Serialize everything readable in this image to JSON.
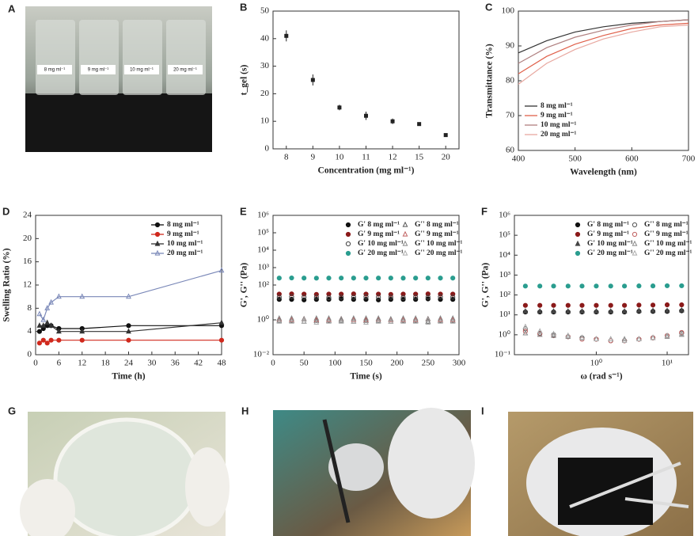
{
  "photos": [
    {
      "label": "A",
      "vial_labels": [
        "8 mg ml⁻¹",
        "9 mg ml⁻¹",
        "10 mg ml⁻¹",
        "20 mg ml⁻¹"
      ]
    },
    {
      "label": "G"
    },
    {
      "label": "H"
    },
    {
      "label": "I"
    }
  ],
  "chart_data": [
    {
      "type": "scatter",
      "panel": "B",
      "xlabel": "Concentration (mg ml⁻¹)",
      "ylabel": "t_gel (s)",
      "categories": [
        "8",
        "9",
        "10",
        "11",
        "12",
        "15",
        "20"
      ],
      "values": [
        41,
        25,
        15,
        12,
        10,
        9,
        5
      ],
      "errors": [
        2,
        2,
        1,
        1.5,
        1,
        0.5,
        0.5
      ],
      "color": "#222",
      "ylim": [
        0,
        50
      ],
      "yticks": [
        0,
        10,
        20,
        30,
        40,
        50
      ]
    },
    {
      "type": "line",
      "panel": "C",
      "xlabel": "Wavelength (nm)",
      "ylabel": "Transmittance (%)",
      "x": [
        400,
        450,
        500,
        550,
        600,
        650,
        700
      ],
      "xlim": [
        400,
        700
      ],
      "xticks": [
        400,
        500,
        600,
        700
      ],
      "ylim": [
        60,
        100
      ],
      "yticks": [
        60,
        70,
        80,
        90,
        100
      ],
      "legend": "lower left",
      "series": [
        {
          "name": "8 mg ml⁻¹",
          "color": "#333",
          "values": [
            88,
            91.5,
            94,
            95.5,
            96.5,
            97,
            97.5
          ]
        },
        {
          "name": "9 mg ml⁻¹",
          "color": "#e0604a",
          "values": [
            82,
            87,
            90.5,
            93,
            95,
            96,
            96.5
          ]
        },
        {
          "name": "10 mg ml⁻¹",
          "color": "#b08080",
          "values": [
            85,
            89.5,
            92.5,
            94.5,
            96,
            97,
            97.5
          ]
        },
        {
          "name": "20 mg ml⁻¹",
          "color": "#e8a8a0",
          "values": [
            79,
            85,
            89,
            92,
            94,
            95.5,
            96
          ]
        }
      ]
    },
    {
      "type": "line",
      "panel": "D",
      "xlabel": "Time (h)",
      "ylabel": "Swelling Ratio (%)",
      "x": [
        1,
        2,
        3,
        4,
        6,
        12,
        24,
        48
      ],
      "xlim": [
        0,
        48
      ],
      "xticks": [
        0,
        6,
        12,
        18,
        24,
        30,
        36,
        42,
        48
      ],
      "ylim": [
        0,
        24
      ],
      "yticks": [
        0,
        4,
        8,
        12,
        16,
        20,
        24
      ],
      "legend": "upper right",
      "series": [
        {
          "name": "8 mg ml⁻¹",
          "color": "#111",
          "marker": "circle",
          "filled": true,
          "values": [
            4,
            4.5,
            5,
            5,
            4.5,
            4.5,
            5,
            5
          ]
        },
        {
          "name": "9 mg ml⁻¹",
          "color": "#d0281c",
          "marker": "circle",
          "filled": true,
          "values": [
            2,
            2.5,
            2,
            2.5,
            2.5,
            2.5,
            2.5,
            2.5
          ]
        },
        {
          "name": "10 mg ml⁻¹",
          "color": "#333",
          "marker": "triangle",
          "filled": true,
          "values": [
            5,
            5,
            5.5,
            5,
            4,
            4,
            4,
            5.5
          ]
        },
        {
          "name": "20 mg ml⁻¹",
          "color": "#7a88b8",
          "marker": "triangle",
          "filled": false,
          "values": [
            7,
            6,
            8,
            9,
            10,
            10,
            10,
            14.5
          ]
        }
      ]
    },
    {
      "type": "scatter",
      "panel": "E",
      "xlabel": "Time (s)",
      "ylabel": "G', G'' (Pa)",
      "ylog": true,
      "x": [
        10,
        30,
        50,
        70,
        90,
        110,
        130,
        150,
        170,
        190,
        210,
        230,
        250,
        270,
        290
      ],
      "xlim": [
        0,
        300
      ],
      "xticks": [
        0,
        50,
        100,
        150,
        200,
        250,
        300
      ],
      "ylim": [
        0.01,
        1000000
      ],
      "legend": "upper right",
      "legend_columns": 2,
      "yticks": [
        {
          "value": 0.01,
          "label": "10⁻²"
        },
        {
          "value": 1,
          "label": "10⁰"
        },
        {
          "value": 100,
          "label": "10²"
        },
        {
          "value": 1000,
          "label": "10³"
        },
        {
          "value": 10000,
          "label": "10⁴"
        },
        {
          "value": 100000,
          "label": "10⁵"
        },
        {
          "value": 1000000,
          "label": "10⁶"
        }
      ],
      "series": [
        {
          "name": "G' 8 mg ml⁻¹",
          "color": "#111",
          "marker": "circle",
          "filled": true,
          "values": [
            15,
            15,
            14,
            15,
            15,
            16,
            15,
            15,
            14,
            15,
            15,
            15,
            16,
            15,
            15
          ]
        },
        {
          "name": "G'' 8 mg ml⁻¹",
          "color": "#555",
          "marker": "triangle",
          "filled": false,
          "values": [
            0.9,
            0.9,
            0.8,
            0.9,
            0.9,
            0.9,
            0.8,
            0.9,
            0.9,
            0.8,
            0.9,
            0.9,
            0.8,
            0.9,
            0.9
          ]
        },
        {
          "name": "G' 9 mg ml⁻¹",
          "color": "#8b1a1a",
          "marker": "circle",
          "filled": true,
          "values": [
            30,
            31,
            30,
            29,
            30,
            30,
            31,
            30,
            30,
            29,
            30,
            30,
            31,
            30,
            30
          ]
        },
        {
          "name": "G'' 9 mg ml⁻¹",
          "color": "#c06060",
          "marker": "triangle",
          "filled": false,
          "values": [
            1.1,
            1,
            1.1,
            1,
            1,
            1.1,
            1,
            1,
            1.1,
            1,
            1,
            1,
            1.1,
            1,
            1
          ]
        },
        {
          "name": "G' 10 mg ml⁻¹",
          "color": "#444",
          "marker": "circle",
          "filled": false,
          "values": [
            20,
            21,
            20,
            20,
            19,
            20,
            20,
            21,
            20,
            20,
            19,
            20,
            20,
            21,
            20
          ]
        },
        {
          "name": "G'' 10 mg ml⁻¹",
          "color": "#888",
          "marker": "triangle",
          "filled": false,
          "values": [
            1.2,
            1.2,
            1.1,
            1.2,
            1.2,
            1.1,
            1.2,
            1.2,
            1.2,
            1.1,
            1.2,
            1.2,
            1.1,
            1.2,
            1.2
          ]
        },
        {
          "name": "G' 20 mg ml⁻¹",
          "color": "#2a9d8f",
          "marker": "circle",
          "filled": true,
          "values": [
            250,
            255,
            250,
            248,
            250,
            252,
            250,
            250,
            251,
            250,
            249,
            250,
            252,
            250,
            250
          ]
        },
        {
          "name": "G'' 20 mg ml⁻¹",
          "color": "#aaa",
          "marker": "triangle",
          "filled": false,
          "values": [
            0.8,
            0.8,
            0.8,
            0.7,
            0.8,
            0.8,
            0.8,
            0.7,
            0.8,
            0.8,
            0.8,
            0.8,
            0.7,
            0.8,
            0.8
          ]
        }
      ]
    },
    {
      "type": "scatter",
      "panel": "F",
      "xlabel": "ω (rad s⁻¹)",
      "ylabel": "G', G'' (Pa)",
      "ylog": true,
      "xlog": true,
      "x": [
        0.1,
        0.16,
        0.25,
        0.4,
        0.63,
        1,
        1.6,
        2.5,
        4,
        6.3,
        10,
        16
      ],
      "xlim": [
        0.07,
        20
      ],
      "xticks": [
        {
          "value": 1,
          "label": "10⁰"
        },
        {
          "value": 10,
          "label": "10¹"
        }
      ],
      "ylim": [
        0.1,
        1000000
      ],
      "legend": "upper right",
      "legend_columns": 2,
      "yticks": [
        {
          "value": 0.1,
          "label": "10⁻¹"
        },
        {
          "value": 1,
          "label": "10⁰"
        },
        {
          "value": 10,
          "label": "10¹"
        },
        {
          "value": 100,
          "label": "10²"
        },
        {
          "value": 1000,
          "label": "10³"
        },
        {
          "value": 10000,
          "label": "10⁴"
        },
        {
          "value": 100000,
          "label": "10⁵"
        },
        {
          "value": 1000000,
          "label": "10⁶"
        }
      ],
      "series": [
        {
          "name": "G' 8 mg ml⁻¹",
          "color": "#111",
          "marker": "circle",
          "filled": true,
          "values": [
            14,
            14,
            14,
            14,
            14,
            14,
            14,
            14,
            15,
            15,
            15,
            16
          ]
        },
        {
          "name": "G'' 8 mg ml⁻¹",
          "color": "#555",
          "marker": "circle",
          "filled": false,
          "values": [
            2,
            1.2,
            1,
            0.8,
            0.7,
            0.6,
            0.5,
            0.5,
            0.6,
            0.7,
            0.9,
            1.2
          ]
        },
        {
          "name": "G' 9 mg ml⁻¹",
          "color": "#8b1a1a",
          "marker": "circle",
          "filled": true,
          "values": [
            30,
            30,
            30,
            30,
            30,
            30,
            30,
            30,
            31,
            31,
            32,
            32
          ]
        },
        {
          "name": "G'' 9 mg ml⁻¹",
          "color": "#c06060",
          "marker": "circle",
          "filled": false,
          "values": [
            1.5,
            1.1,
            0.9,
            0.8,
            0.6,
            0.6,
            0.5,
            0.5,
            0.6,
            0.7,
            0.9,
            1.3
          ]
        },
        {
          "name": "G' 10 mg ml⁻¹",
          "color": "#444",
          "marker": "triangle",
          "filled": true,
          "values": [
            15,
            15,
            15,
            15,
            15,
            15,
            15,
            15,
            16,
            16,
            16,
            17
          ]
        },
        {
          "name": "G'' 10 mg ml⁻¹",
          "color": "#888",
          "marker": "triangle",
          "filled": false,
          "values": [
            1.2,
            1,
            0.9,
            0.8,
            0.7,
            0.6,
            0.6,
            0.6,
            0.6,
            0.7,
            0.8,
            1
          ]
        },
        {
          "name": "G' 20 mg ml⁻¹",
          "color": "#2a9d8f",
          "marker": "circle",
          "filled": true,
          "values": [
            280,
            280,
            280,
            280,
            280,
            280,
            280,
            280,
            285,
            285,
            290,
            290
          ]
        },
        {
          "name": "G'' 20 mg ml⁻¹",
          "color": "#aaa",
          "marker": "triangle",
          "filled": false,
          "values": [
            2.5,
            1.5,
            1.1,
            0.9,
            0.7,
            0.6,
            0.6,
            0.5,
            0.6,
            0.7,
            0.9,
            1.1
          ]
        }
      ]
    }
  ]
}
